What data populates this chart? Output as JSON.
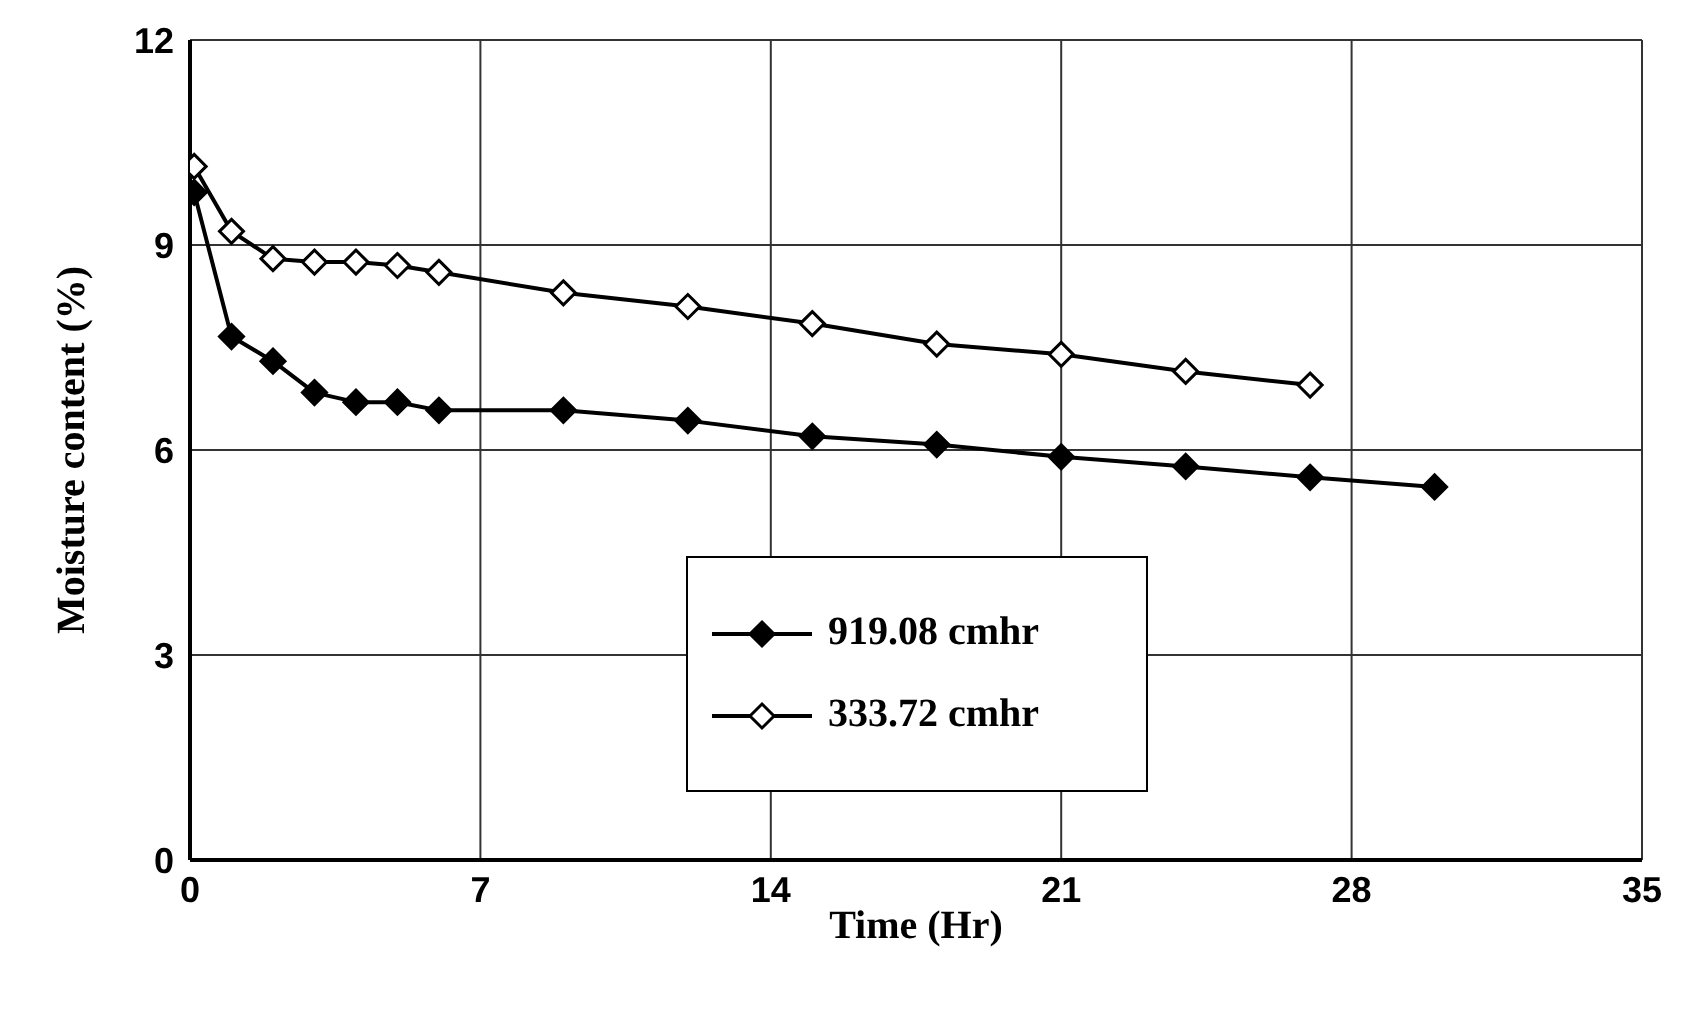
{
  "chart_data": {
    "type": "line",
    "xlabel": "Time (Hr)",
    "ylabel": "Moisture content (%)",
    "xlim": [
      0,
      35
    ],
    "xticks": [
      0,
      7,
      14,
      21,
      28,
      35
    ],
    "ylim": [
      0,
      12
    ],
    "yticks": [
      0,
      3,
      6,
      9,
      12
    ],
    "grid": true,
    "legend": "bottom",
    "marker": "diamond",
    "line_style": "solid",
    "series": [
      {
        "name": "919.08 cmhr",
        "color": "#000000",
        "x": [
          0.1,
          1,
          2,
          3,
          4,
          5,
          6,
          9,
          12,
          15,
          18,
          21,
          24,
          27,
          30
        ],
        "values": [
          9.77,
          7.66,
          7.3,
          6.84,
          6.7,
          6.7,
          6.58,
          6.58,
          6.43,
          6.2,
          6.08,
          5.9,
          5.76,
          5.6,
          5.46
        ]
      },
      {
        "name": "333.72 cmhr",
        "color": "#000000",
        "x": [
          0.1,
          1,
          2,
          3,
          4,
          5,
          6,
          9,
          12,
          15,
          18,
          21,
          24,
          27
        ],
        "values": [
          10.15,
          9.2,
          8.8,
          8.75,
          8.75,
          8.7,
          8.6,
          8.3,
          8.1,
          7.85,
          7.55,
          7.4,
          7.15,
          6.95
        ]
      }
    ]
  }
}
